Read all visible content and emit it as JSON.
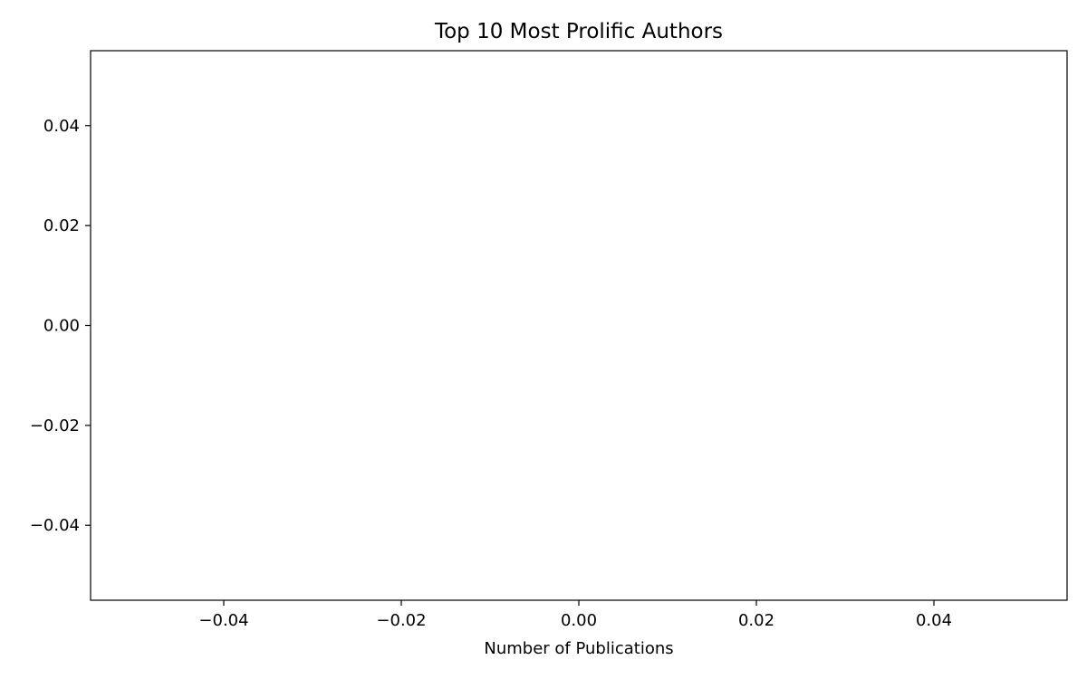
{
  "chart_data": {
    "type": "bar",
    "orientation": "horizontal",
    "title": "Top 10 Most Prolific Authors",
    "xlabel": "Number of Publications",
    "ylabel": "",
    "categories": [],
    "values": [],
    "xlim": [
      -0.055,
      0.055
    ],
    "ylim": [
      -0.055,
      0.055
    ],
    "xticks": [
      -0.04,
      -0.02,
      0.0,
      0.02,
      0.04
    ],
    "xtick_labels": [
      "−0.04",
      "−0.02",
      "0.00",
      "0.02",
      "0.04"
    ],
    "yticks": [
      0.04,
      0.02,
      0.0,
      -0.02,
      -0.04
    ],
    "ytick_labels": [
      "0.04",
      "0.02",
      "0.00",
      "−0.02",
      "−0.04"
    ],
    "grid": false,
    "legend": "none",
    "colors": {
      "axis": "#000000",
      "background": "#ffffff"
    }
  }
}
